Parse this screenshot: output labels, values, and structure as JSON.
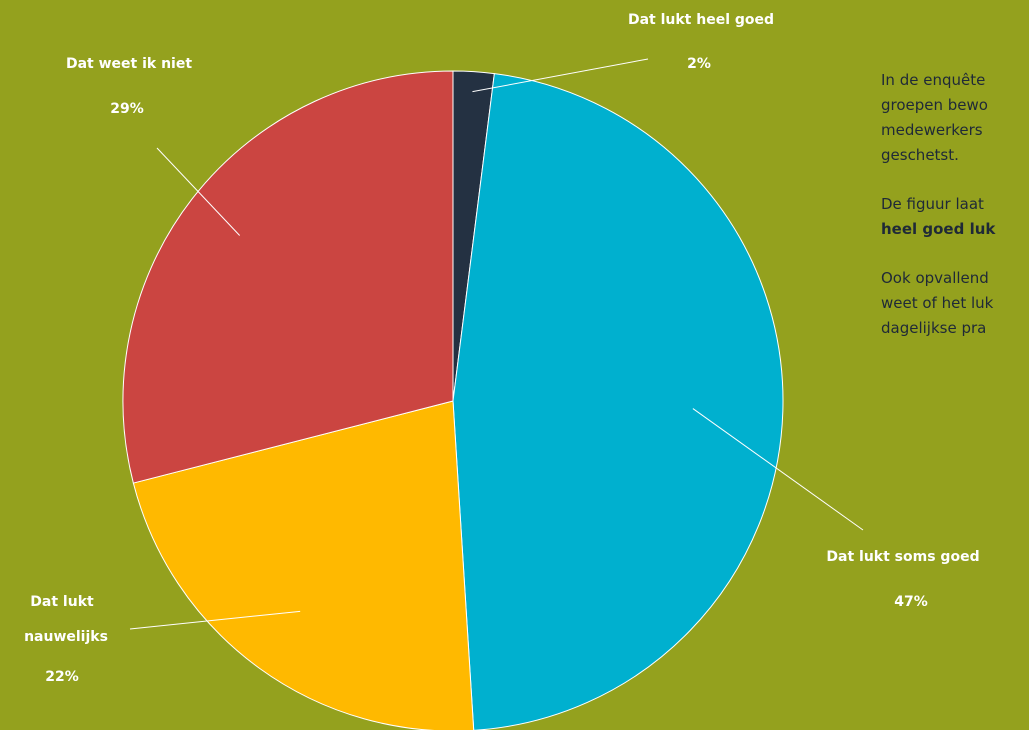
{
  "chart_data": {
    "type": "pie",
    "slices": [
      {
        "label": "Dat lukt heel goed",
        "value": 2,
        "value_label": "2%",
        "color": "#243142"
      },
      {
        "label": "Dat lukt soms goed",
        "value": 47,
        "value_label": "47%",
        "color": "#00B0CF"
      },
      {
        "label_lines": [
          "Dat lukt",
          "nauwelijks"
        ],
        "value": 22,
        "value_label": "22%",
        "color": "#FFB900"
      },
      {
        "label": "Dat weet ik niet",
        "value": 29,
        "value_label": "29%",
        "color": "#CB4541"
      }
    ],
    "start_angle_deg": 0,
    "direction": "clockwise"
  },
  "background_color": "#94A11E",
  "side_text": {
    "p1": [
      "In de enquête",
      "groepen bewo",
      "medewerkers",
      "geschetst."
    ],
    "p2_line1": "De figuur laat",
    "p2_line2_bold": "heel goed luk",
    "p3": [
      "Ook opvallend",
      "weet of het luk",
      "dagelijkse pra"
    ]
  }
}
